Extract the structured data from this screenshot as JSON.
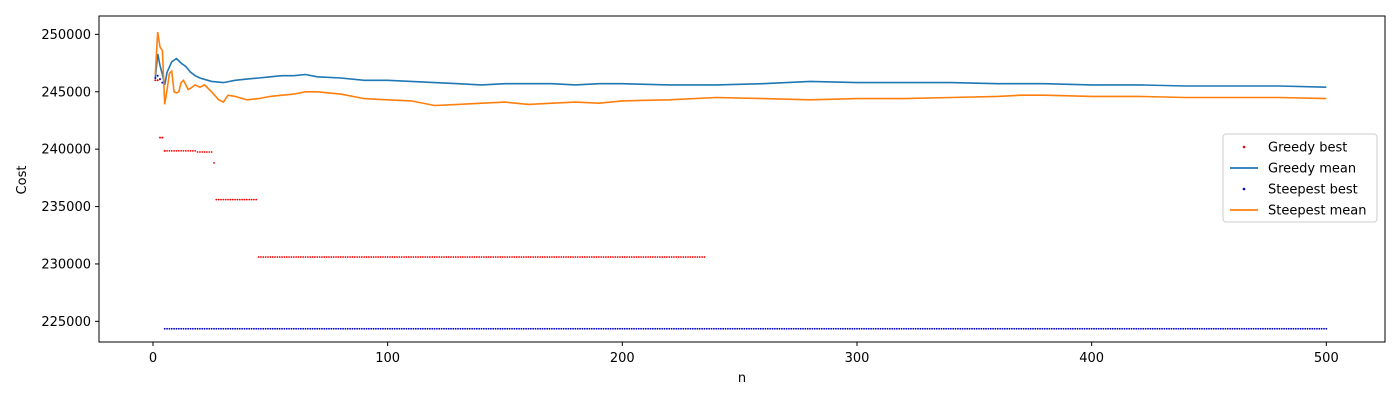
{
  "chart_data": {
    "type": "line",
    "title": "",
    "xlabel": "n",
    "ylabel": "Cost",
    "xlim": [
      -23,
      525
    ],
    "ylim": [
      223200,
      251600
    ],
    "xticks": [
      0,
      100,
      200,
      300,
      400,
      500
    ],
    "yticks": [
      225000,
      230000,
      235000,
      240000,
      245000,
      250000
    ],
    "grid": false,
    "legend_position": "center-right",
    "series": [
      {
        "name": "Greedy best",
        "style": "dots",
        "color": "#ff0000",
        "points": [
          [
            1,
            246000
          ],
          [
            2,
            246000
          ],
          [
            3,
            241000
          ],
          [
            4,
            241000
          ],
          [
            5,
            239850
          ]
        ],
        "segments": [
          {
            "x_start": 6,
            "x_end": 18,
            "y": 239850
          },
          {
            "x_start": 19,
            "x_end": 25,
            "y": 239750
          },
          {
            "x_start": 26,
            "x_end": 26,
            "y": 238800
          },
          {
            "x_start": 27,
            "x_end": 44,
            "y": 235600
          },
          {
            "x_start": 45,
            "x_end": 235,
            "y": 230600
          }
        ]
      },
      {
        "name": "Greedy mean",
        "style": "line",
        "color": "#1f77b4",
        "x": [
          1,
          2,
          3,
          4,
          5,
          6,
          8,
          10,
          12,
          14,
          16,
          18,
          20,
          25,
          30,
          35,
          40,
          45,
          50,
          55,
          60,
          65,
          70,
          80,
          90,
          100,
          110,
          120,
          130,
          140,
          150,
          160,
          170,
          180,
          190,
          200,
          220,
          240,
          260,
          280,
          300,
          320,
          340,
          360,
          380,
          400,
          420,
          440,
          460,
          480,
          500
        ],
        "values": [
          246200,
          248300,
          247300,
          246500,
          245600,
          246700,
          247600,
          247900,
          247500,
          247200,
          246700,
          246400,
          246200,
          245900,
          245800,
          246000,
          246100,
          246200,
          246300,
          246400,
          246400,
          246500,
          246300,
          246200,
          246000,
          246000,
          245900,
          245800,
          245700,
          245600,
          245700,
          245700,
          245700,
          245600,
          245700,
          245700,
          245600,
          245600,
          245700,
          245900,
          245800,
          245800,
          245800,
          245700,
          245700,
          245600,
          245600,
          245500,
          245500,
          245500,
          245400
        ]
      },
      {
        "name": "Steepest best",
        "style": "dots",
        "color": "#0000cc",
        "points": [
          [
            1,
            246200
          ],
          [
            2,
            246400
          ],
          [
            3,
            246100
          ],
          [
            4,
            245800
          ]
        ],
        "segments": [
          {
            "x_start": 5,
            "x_end": 500,
            "y": 224350
          }
        ]
      },
      {
        "name": "Steepest mean",
        "style": "line",
        "color": "#ff7f0e",
        "x": [
          1,
          2,
          3,
          4,
          5,
          6,
          7,
          8,
          9,
          10,
          11,
          12,
          13,
          14,
          15,
          16,
          18,
          20,
          22,
          25,
          28,
          30,
          32,
          35,
          40,
          45,
          50,
          55,
          60,
          65,
          70,
          80,
          90,
          100,
          110,
          120,
          130,
          140,
          150,
          160,
          170,
          180,
          190,
          200,
          220,
          240,
          260,
          280,
          300,
          320,
          340,
          360,
          370,
          380,
          400,
          420,
          440,
          460,
          480,
          500
        ],
        "values": [
          246500,
          250200,
          248900,
          248600,
          243900,
          245200,
          246600,
          246800,
          245000,
          244900,
          245000,
          245800,
          246000,
          245600,
          245200,
          245300,
          245600,
          245400,
          245600,
          245000,
          244300,
          244100,
          244700,
          244600,
          244300,
          244400,
          244600,
          244700,
          244800,
          245000,
          245000,
          244800,
          244400,
          244300,
          244200,
          243800,
          243900,
          244000,
          244100,
          243900,
          244000,
          244100,
          244000,
          244200,
          244300,
          244500,
          244400,
          244300,
          244400,
          244400,
          244500,
          244600,
          244700,
          244700,
          244600,
          244600,
          244500,
          244500,
          244500,
          244400
        ]
      }
    ]
  }
}
